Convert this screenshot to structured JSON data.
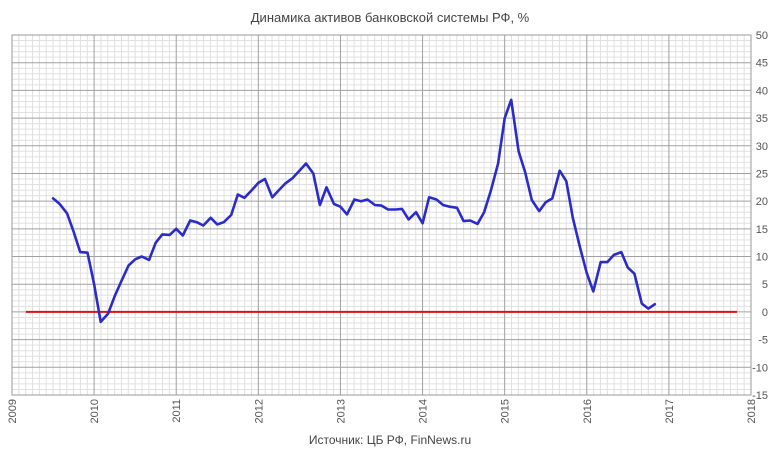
{
  "chart_data": {
    "type": "line",
    "title": "Динамика активов банковской системы РФ, %",
    "source": "Источник: ЦБ РФ, FinNews.ru",
    "xlabel": "",
    "ylabel": "",
    "xlim": [
      2009,
      2018
    ],
    "ylim": [
      -15,
      50
    ],
    "y_ticks": [
      -15,
      -10,
      -5,
      0,
      5,
      10,
      15,
      20,
      25,
      30,
      35,
      40,
      45,
      50
    ],
    "x_ticks": [
      "2009",
      "2010",
      "2011",
      "2012",
      "2013",
      "2014",
      "2015",
      "2016",
      "2017",
      "2018"
    ],
    "y_axis_side": "right",
    "x_tick_rotation": "vertical",
    "grid": true,
    "minor_grid": true,
    "colors": {
      "series": "#2b2bcc",
      "zero_line": "#dd1111",
      "grid_major": "#a0a0a0",
      "grid_minor": "#e0e0e0"
    },
    "series": [
      {
        "x": [
          2009.5,
          2009.58,
          2009.67,
          2009.75,
          2009.83,
          2009.92,
          2010.0,
          2010.08,
          2010.17,
          2010.25,
          2010.33,
          2010.42,
          2010.5,
          2010.58,
          2010.67,
          2010.75,
          2010.83,
          2010.92,
          2011.0,
          2011.08,
          2011.17,
          2011.25,
          2011.33,
          2011.42,
          2011.5,
          2011.58,
          2011.67,
          2011.75,
          2011.83,
          2011.92,
          2012.0,
          2012.08,
          2012.17,
          2012.25,
          2012.33,
          2012.42,
          2012.5,
          2012.58,
          2012.67,
          2012.75,
          2012.83,
          2012.92,
          2013.0,
          2013.08,
          2013.17,
          2013.25,
          2013.33,
          2013.42,
          2013.5,
          2013.58,
          2013.67,
          2013.75,
          2013.83,
          2013.92,
          2014.0,
          2014.08,
          2014.17,
          2014.25,
          2014.33,
          2014.42,
          2014.5,
          2014.58,
          2014.67,
          2014.75,
          2014.83,
          2014.92,
          2015.0,
          2015.08,
          2015.17,
          2015.25,
          2015.33,
          2015.42,
          2015.5,
          2015.58,
          2015.67,
          2015.75,
          2015.83,
          2015.92,
          2016.0,
          2016.08,
          2016.17,
          2016.25,
          2016.33,
          2016.42,
          2016.5,
          2016.58,
          2016.67,
          2016.75,
          2016.83,
          2016.92
        ],
        "y": [
          20.5,
          19.5,
          17.8,
          14.5,
          10.8,
          10.7,
          5.0,
          -1.8,
          -0.3,
          2.8,
          5.5,
          8.4,
          9.5,
          10.0,
          9.4,
          12.5,
          14.0,
          13.9,
          15.0,
          13.8,
          16.5,
          16.2,
          15.6,
          17.0,
          15.8,
          16.2,
          17.5,
          21.2,
          20.6,
          22.0,
          23.3,
          24.0,
          20.7,
          22.0,
          23.2,
          24.2,
          25.5,
          26.8,
          25.0,
          19.3,
          22.5,
          19.5,
          19.0,
          17.6,
          20.3,
          20.0,
          20.3,
          19.3,
          19.2,
          18.5,
          18.5,
          18.6,
          16.7,
          18.0,
          16.0,
          20.7,
          20.3,
          19.3,
          19.0,
          18.8,
          16.4,
          16.5,
          15.9,
          18.0,
          21.8,
          26.8,
          35.0,
          38.3,
          29.0,
          25.2,
          20.2,
          18.2,
          19.8,
          20.5,
          25.5,
          23.6,
          17.0,
          11.5,
          7.0,
          3.7,
          9.0,
          9.0,
          10.3,
          10.8,
          8.0,
          6.9,
          1.5,
          0.6,
          1.4,
          null
        ]
      },
      {
        "x": [
          2009.17,
          2017.83
        ],
        "y": [
          0,
          0
        ]
      }
    ]
  }
}
